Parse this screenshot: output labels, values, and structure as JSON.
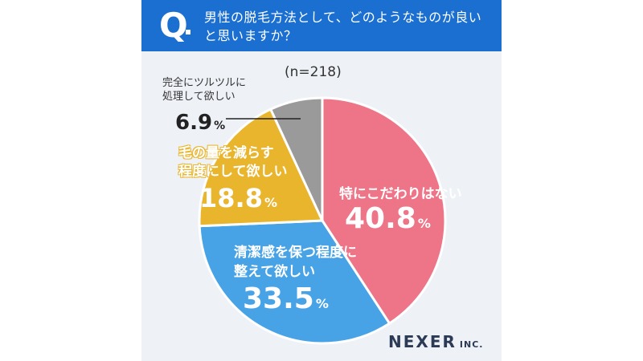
{
  "header": {
    "q_mark": "Q",
    "question": "男性の脱毛方法として、どのようなものが良いと思いますか？"
  },
  "sample_size": "(n=218)",
  "logo": {
    "name": "NEXER",
    "suffix": "INC."
  },
  "colors": {
    "header_bg": "#1a6fd0",
    "pink": "#ee7487",
    "blue": "#48a3e6",
    "yellow": "#e9b52d",
    "gray": "#9a9a9a"
  },
  "chart_data": {
    "type": "pie",
    "title": "男性の脱毛方法として、どのようなものが良いと思いますか？",
    "start": "12 o'clock",
    "direction": "clockwise",
    "slices": [
      {
        "label": "特にこだわりはない",
        "value": 40.8,
        "display": "40.8",
        "unit": "%",
        "color": "#ee7487"
      },
      {
        "label": "清潔感を保つ程度に整えて欲しい",
        "label_lines": [
          "清潔感を保つ程度に",
          "整えて欲しい"
        ],
        "value": 33.5,
        "display": "33.5",
        "unit": "%",
        "color": "#48a3e6"
      },
      {
        "label": "毛の量を減らす程度にして欲しい",
        "label_lines": [
          "毛の量を減らす",
          "程度にして欲しい"
        ],
        "value": 18.8,
        "display": "18.8",
        "unit": "%",
        "color": "#e9b52d"
      },
      {
        "label": "完全にツルツルに処理して欲しい",
        "label_lines": [
          "完全にツルツルに",
          "処理して欲しい"
        ],
        "value": 6.9,
        "display": "6.9",
        "unit": "%",
        "color": "#9a9a9a"
      }
    ]
  }
}
